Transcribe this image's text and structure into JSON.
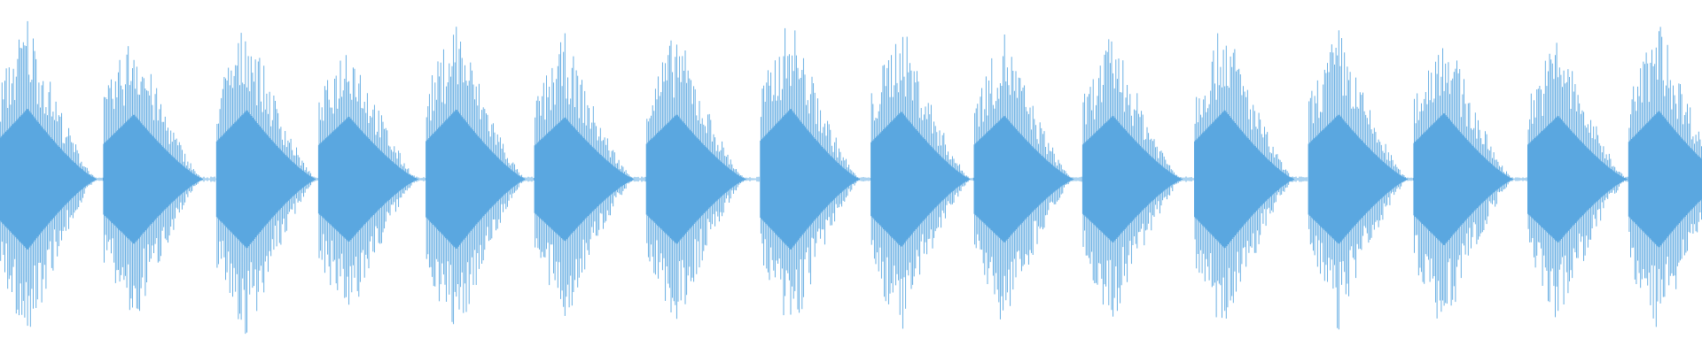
{
  "chart_data": {
    "type": "waveform",
    "color": "#5aa7e0",
    "x": [
      30,
      128,
      232,
      326,
      425,
      525,
      628,
      733,
      835,
      930,
      1030,
      1133,
      1238,
      1335,
      1440,
      1533
    ],
    "values": [
      0.99,
      0.91,
      0.97,
      0.88,
      0.98,
      0.87,
      0.91,
      0.99,
      0.95,
      0.89,
      0.89,
      0.97,
      0.91,
      0.93,
      0.89,
      0.96
    ],
    "xlim": [
      0,
      1568
    ],
    "ylim": [
      -1,
      1
    ]
  }
}
